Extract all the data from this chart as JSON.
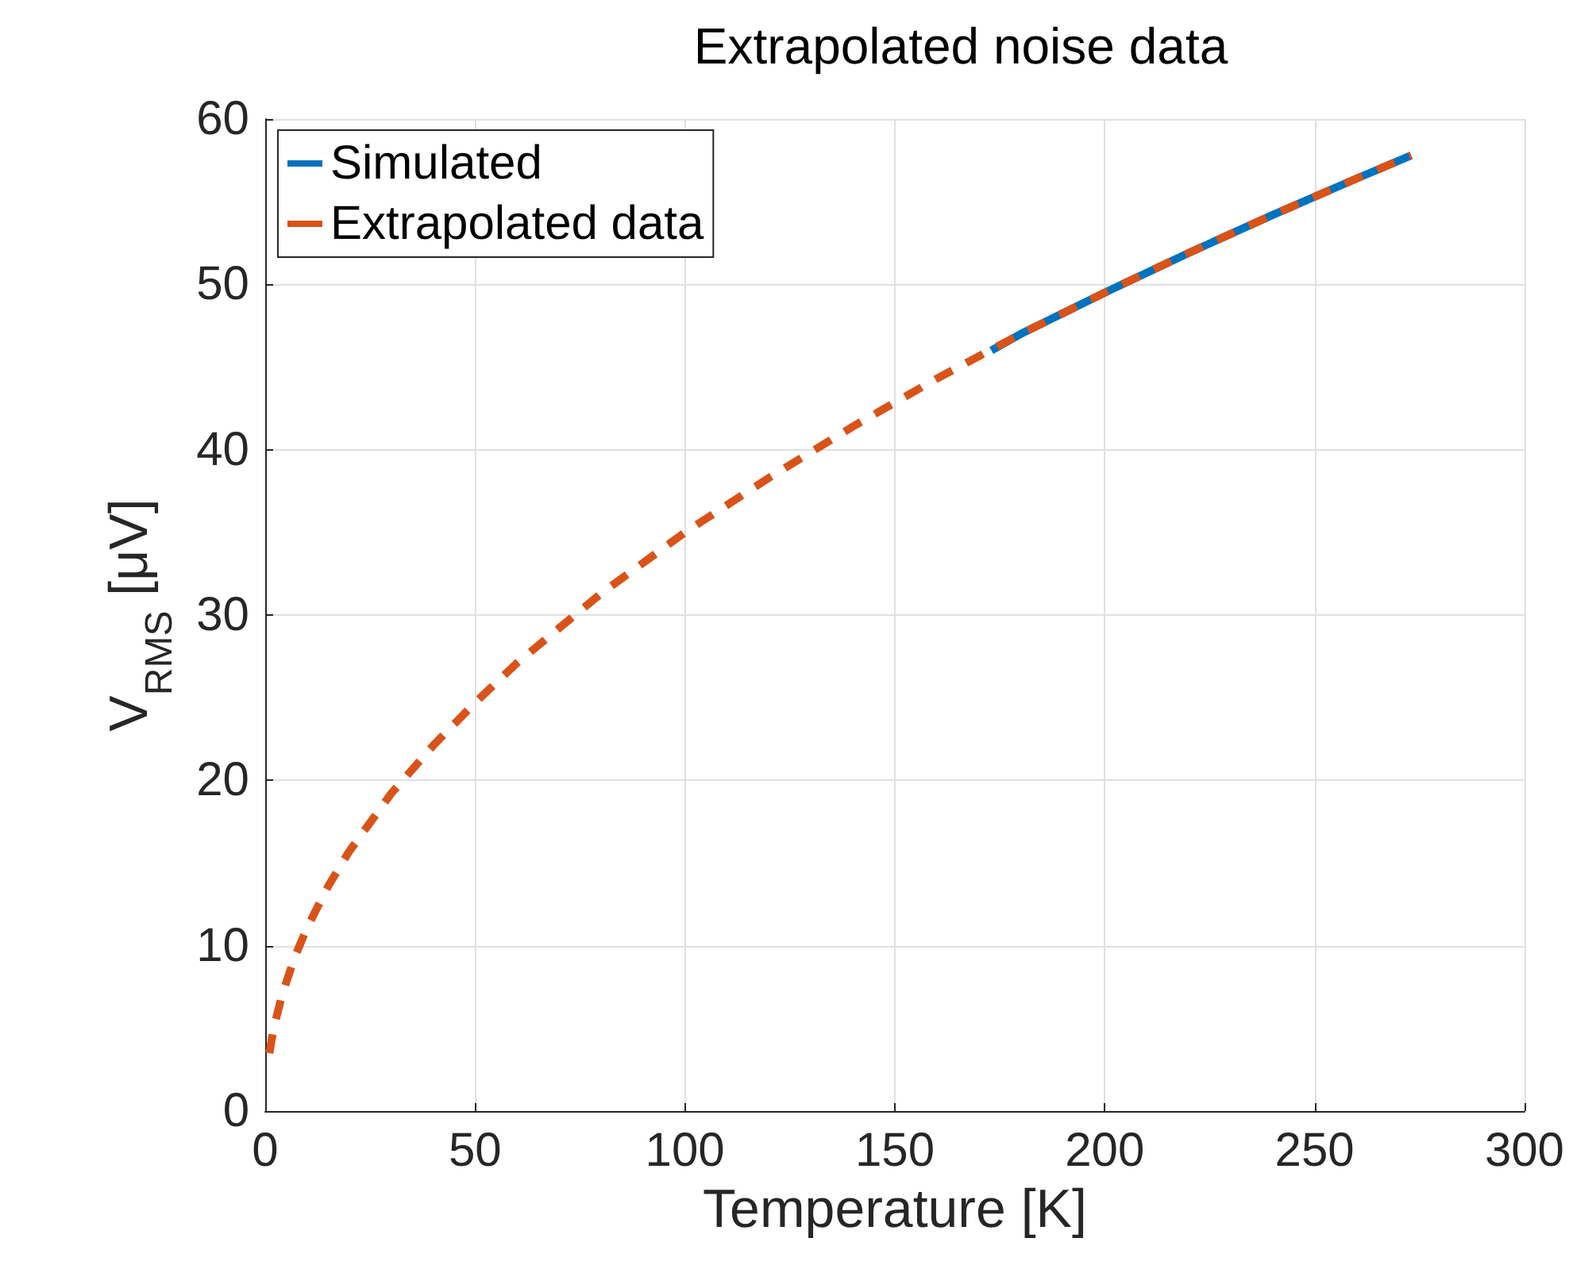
{
  "chart_data": {
    "type": "line",
    "title": "Extrapolated noise data",
    "xlabel": "Temperature [K]",
    "ylabel": "V$_{RMS}$ [μV]",
    "xlim": [
      0,
      300
    ],
    "xticks": [
      0,
      50,
      100,
      150,
      200,
      250,
      300
    ],
    "ylim": [
      0,
      60
    ],
    "yticks": [
      0,
      10,
      20,
      30,
      40,
      50,
      60
    ],
    "grid": true,
    "legend": "top left",
    "marker": "none",
    "series": [
      {
        "name": "Simulated",
        "color": "#0072bd",
        "line_style": "solid",
        "x": [
          173,
          180,
          200,
          220,
          240,
          260,
          273
        ],
        "values": [
          46.0,
          47.0,
          49.5,
          51.9,
          54.2,
          56.4,
          57.8
        ]
      },
      {
        "name": "Extrapolated data",
        "color": "#d95319",
        "line_style": "dashed",
        "x": [
          1,
          2,
          4,
          7,
          10,
          15,
          20,
          30,
          40,
          50,
          60,
          80,
          100,
          120,
          140,
          160,
          180,
          200,
          220,
          240,
          260,
          273
        ],
        "values": [
          3.5,
          5.0,
          7.0,
          9.3,
          11.1,
          13.6,
          15.7,
          19.2,
          22.1,
          24.7,
          27.1,
          31.3,
          35.0,
          38.3,
          41.4,
          44.3,
          47.0,
          49.5,
          51.9,
          54.2,
          56.4,
          57.8
        ]
      }
    ]
  }
}
